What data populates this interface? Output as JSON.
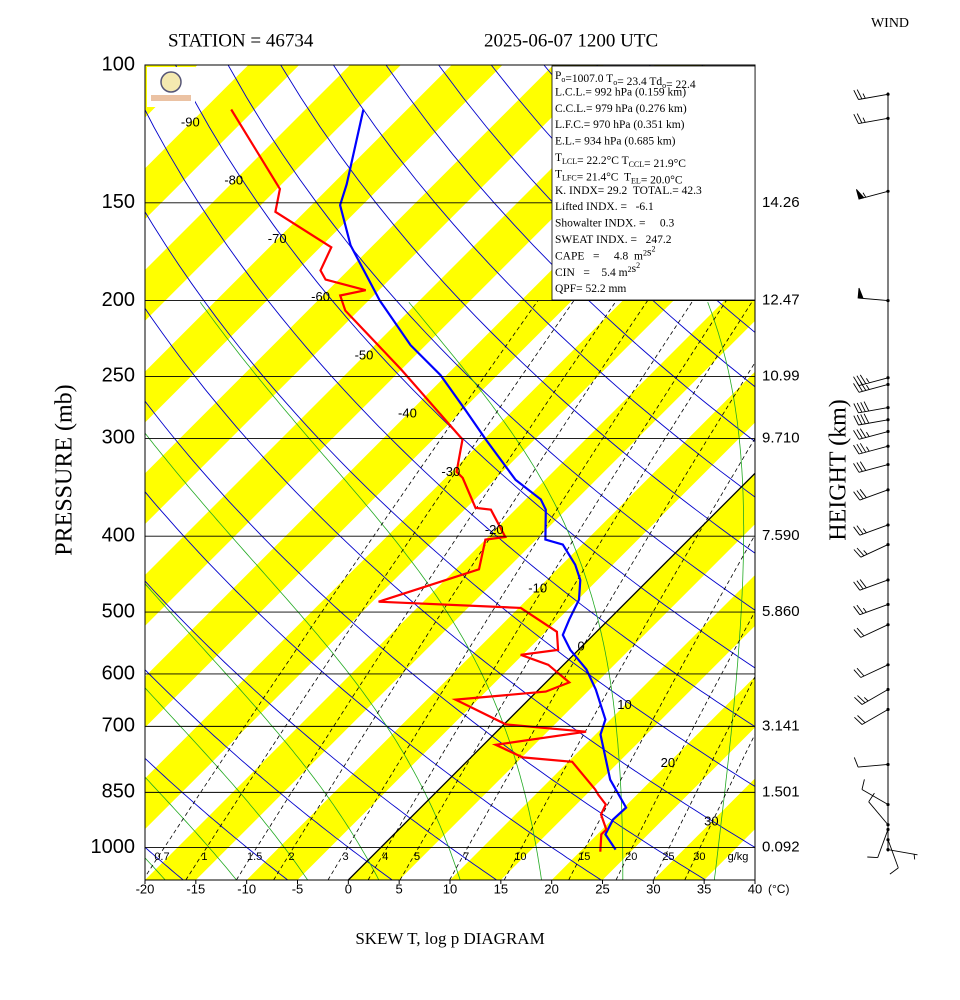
{
  "chart_data": {
    "type": "skewt",
    "title_left": "STATION = 46734",
    "title_right": "2025-06-07 1200 UTC",
    "xlabel": "SKEW T, log p DIAGRAM",
    "ylabel": "PRESSURE (mb)",
    "y2label": "HEIGHT (km)",
    "wind_title": "WIND",
    "xunit": "(°C)",
    "log_y": true,
    "xlim": [
      -20,
      40
    ],
    "ylim": [
      1100,
      100
    ],
    "xticks": [
      -20,
      -15,
      -10,
      -5,
      0,
      5,
      10,
      15,
      20,
      25,
      30,
      35,
      40
    ],
    "yticks": [
      100,
      150,
      200,
      250,
      300,
      400,
      500,
      600,
      700,
      850,
      1000
    ],
    "height_labels": [
      null,
      14.26,
      12.47,
      10.99,
      {
        "value": 9.71,
        "label": "9.710"
      },
      {
        "value": 7.59,
        "label": "7.590"
      },
      {
        "value": 5.86,
        "label": "5.860"
      },
      null,
      3.141,
      1.501,
      0.092
    ],
    "isotherm_labels": [
      -90,
      -80,
      -70,
      -60,
      -50,
      -40,
      -30,
      -20,
      -10,
      0,
      10,
      20,
      30
    ],
    "mixing_ratio_labels": [
      0.7,
      1,
      1.5,
      2,
      3,
      4,
      5,
      7,
      10,
      15,
      20,
      25,
      30
    ],
    "mixing_ratio_unit": "g/kg",
    "series": [
      {
        "color": "#0000ff",
        "pressure": [
          1006,
          962,
          921,
          889,
          819,
          772,
          717,
          686,
          628,
          592,
          559,
          535,
          511,
          482,
          455,
          435,
          410,
          404,
          370,
          359,
          339,
          301,
          276,
          249,
          228,
          200,
          170,
          151,
          142,
          114
        ],
        "values": [
          23.3,
          20.8,
          20.1,
          20.2,
          15.9,
          13.5,
          10.5,
          9.5,
          5.6,
          2.7,
          -0.8,
          -3.0,
          -3.9,
          -4.9,
          -6.7,
          -8.7,
          -11.9,
          -14.1,
          -17.0,
          -18.5,
          -22.9,
          -29.8,
          -34.7,
          -40.6,
          -46.5,
          -53.9,
          -62.2,
          -67.2,
          -68.6,
          -74.3
        ]
      },
      {
        "color": "#ff0000",
        "pressure": [
          1012,
          962,
          948,
          907,
          881,
          856,
          843,
          777,
          767,
          739,
          711,
          696,
          647,
          632,
          615,
          584,
          567,
          559,
          530,
          494,
          485,
          441,
          404,
          401,
          370,
          368,
          337,
          331,
          301,
          245,
          206,
          197,
          194,
          188,
          183,
          171,
          154,
          144,
          114
        ],
        "values": [
          22.0,
          20.4,
          20.4,
          18.4,
          17.9,
          16.2,
          15.4,
          10.4,
          5.1,
          1.2,
          8.8,
          0.2,
          -7.2,
          0.9,
          2.3,
          -1.5,
          -5.2,
          -2.0,
          -3.9,
          -9.8,
          -24.4,
          -17.7,
          -20.0,
          -18.3,
          -22.4,
          -24.1,
          -28.3,
          -29.5,
          -32.1,
          -45.0,
          -56.3,
          -58.3,
          -56.3,
          -61.3,
          -62.7,
          -63.9,
          -72.9,
          -74.7,
          -87.3
        ]
      }
    ],
    "winds": {
      "pressure": [
        109,
        117,
        145,
        200,
        251,
        256,
        274,
        284,
        294,
        307,
        324,
        349,
        387,
        410,
        455,
        489,
        519,
        584,
        628,
        666,
        783,
        881,
        935,
        948,
        977,
        1006
      ],
      "direction": [
        260,
        260,
        255,
        275,
        255,
        255,
        260,
        260,
        255,
        255,
        255,
        250,
        250,
        245,
        250,
        250,
        245,
        245,
        240,
        240,
        265,
        300,
        320,
        200,
        160,
        100
      ],
      "speed": [
        25,
        25,
        55,
        50,
        35,
        35,
        40,
        40,
        35,
        35,
        30,
        30,
        25,
        25,
        30,
        25,
        20,
        20,
        25,
        20,
        10,
        10,
        10,
        10,
        10,
        5
      ]
    },
    "info_lines": [
      [
        "P",
        {
          "sub": "o"
        },
        "=1007.0 T",
        {
          "sub": "o"
        },
        "= 23.4 Td",
        {
          "sub": "o"
        },
        "= 22.4"
      ],
      [
        "L.C.L.= 992 hPa (0.159 km)"
      ],
      [
        "C.C.L.= 979 hPa (0.276 km)"
      ],
      [
        "L.F.C.= 970 hPa (0.351 km)"
      ],
      [
        "E.L.= 934 hPa (0.685 km)"
      ],
      [
        "T",
        {
          "sub": "LCL"
        },
        "= 22.2°C T",
        {
          "sub": "CCL"
        },
        "= 21.9°C"
      ],
      [
        "T",
        {
          "sub": "LFC"
        },
        "= 21.4°C  T",
        {
          "sub": "EL"
        },
        "= 20.0°C"
      ],
      [
        "K. INDX= 29.2  TOTAL.= 42.3"
      ],
      [
        "Lifted INDX. =   -6.1"
      ],
      [
        "Showalter INDX. =     0.3"
      ],
      [
        "SWEAT INDX. =   247.2"
      ],
      [
        "CAPE   =     4.8  m",
        {
          "sup": "2"
        },
        "s",
        {
          "sup": "2"
        }
      ],
      [
        "CIN   =    5.4 m",
        {
          "sup": "2"
        },
        "s",
        {
          "sup": "2"
        }
      ],
      [
        "QPF= 52.2 mm"
      ]
    ]
  }
}
